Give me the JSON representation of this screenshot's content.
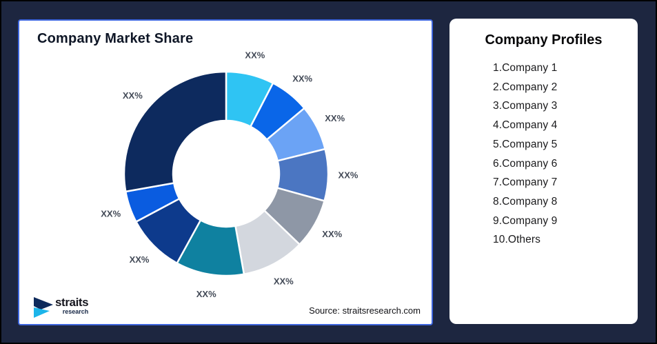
{
  "page": {
    "background": "#1d2640",
    "frame_border": "#000000"
  },
  "left_card": {
    "title": "Company Market Share",
    "source": "Source: straitsresearch.com",
    "accent_border": "#3e66de",
    "logo": {
      "brand": "straits",
      "sub": "research",
      "navy": "#0e2a5c",
      "cyan": "#1cb5ea"
    }
  },
  "right_card": {
    "title": "Company Profiles",
    "items": [
      "1.Company 1",
      "2.Company 2",
      "3.Company 3",
      "4.Company 4",
      "5.Company 5",
      "6.Company 6",
      "7.Company 7",
      "8.Company 8",
      "9.Company 9",
      "10.Others"
    ]
  },
  "chart_data": {
    "type": "pie",
    "variant": "donut",
    "title": "Company Market Share",
    "value_labels_masked": true,
    "start_angle_deg": 0,
    "direction": "clockwise",
    "inner_radius_ratio": 0.52,
    "legend_position": "none",
    "slices": [
      {
        "label": "XX%",
        "value": 7.6,
        "color": "#2fc4f3"
      },
      {
        "label": "XX%",
        "value": 6.3,
        "color": "#0a66e8"
      },
      {
        "label": "XX%",
        "value": 7.2,
        "color": "#6ba3f5"
      },
      {
        "label": "XX%",
        "value": 8.2,
        "color": "#4b76c2"
      },
      {
        "label": "XX%",
        "value": 7.9,
        "color": "#8e97a6"
      },
      {
        "label": "XX%",
        "value": 10.0,
        "color": "#d3d7de"
      },
      {
        "label": "XX%",
        "value": 10.8,
        "color": "#0f81a0"
      },
      {
        "label": "XX%",
        "value": 9.2,
        "color": "#0d3a8c"
      },
      {
        "label": "XX%",
        "value": 5.0,
        "color": "#0a5ce0"
      },
      {
        "label": "XX%",
        "value": 27.8,
        "color": "#0d2a5e"
      }
    ],
    "source": "Source: straitsresearch.com"
  }
}
